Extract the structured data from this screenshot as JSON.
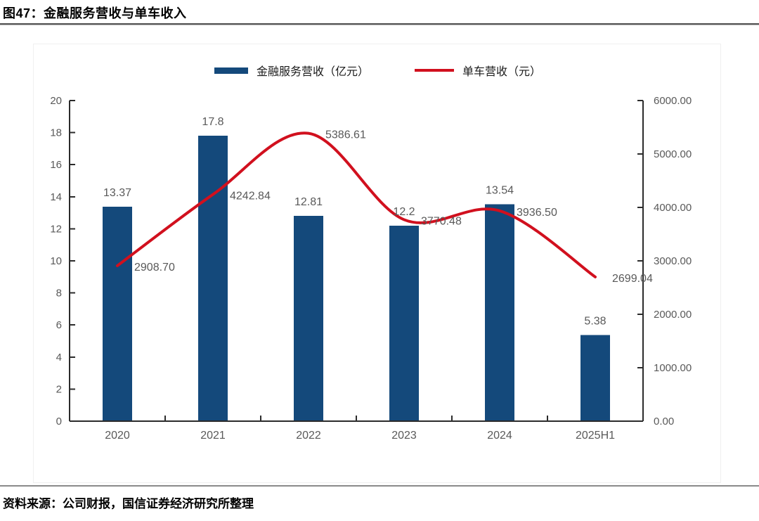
{
  "header": {
    "figure_label": "图47：金融服务营收与单车收入"
  },
  "source": {
    "text": "资料来源：公司财报，国信证券经济研究所整理"
  },
  "legend": [
    {
      "label": "金融服务营收（亿元）",
      "marker": "bar-swatch",
      "color": "#14497B"
    },
    {
      "label": "单车营收（元）",
      "marker": "line-swatch",
      "color": "#D1101E"
    }
  ],
  "chart_data": {
    "type": "bar",
    "subtype": "bar-line-combo",
    "title": "金融服务营收与单车收入",
    "categories": [
      "2020",
      "2021",
      "2022",
      "2023",
      "2024",
      "2025H1"
    ],
    "series": [
      {
        "name": "金融服务营收（亿元）",
        "type": "bar",
        "axis": "left",
        "color": "#14497B",
        "values": [
          13.37,
          17.8,
          12.81,
          12.2,
          13.54,
          5.38
        ],
        "labels": [
          "13.37",
          "17.8",
          "12.81",
          "12.2",
          "13.54",
          "5.38"
        ]
      },
      {
        "name": "单车营收（元）",
        "type": "line",
        "axis": "right",
        "color": "#D1101E",
        "values": [
          2908.7,
          4242.84,
          5386.61,
          3770.48,
          3936.5,
          2699.04
        ],
        "labels": [
          "2908.70",
          "4242.84",
          "5386.61",
          "3770.48",
          "3936.50",
          "2699.04"
        ]
      }
    ],
    "left_axis": {
      "min": 0,
      "max": 20,
      "step": 2,
      "ticks": [
        "0",
        "2",
        "4",
        "6",
        "8",
        "10",
        "12",
        "14",
        "16",
        "18",
        "20"
      ]
    },
    "right_axis": {
      "min": 0,
      "max": 6000,
      "step": 1000,
      "ticks": [
        "0.00",
        "1000.00",
        "2000.00",
        "3000.00",
        "4000.00",
        "5000.00",
        "6000.00"
      ]
    },
    "grid": false,
    "legend_position": "top",
    "label_color": "#595959",
    "axis_color": "#2b2b2b"
  }
}
